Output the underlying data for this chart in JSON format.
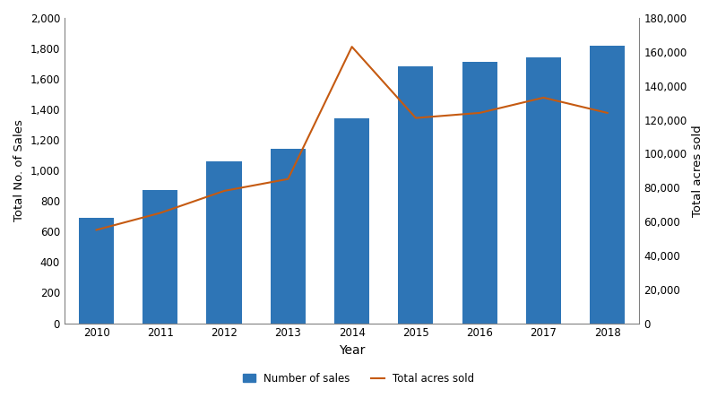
{
  "years": [
    2010,
    2011,
    2012,
    2013,
    2014,
    2015,
    2016,
    2017,
    2018
  ],
  "num_sales": [
    690,
    870,
    1060,
    1140,
    1340,
    1680,
    1710,
    1740,
    1820
  ],
  "acres_sold": [
    55000,
    65000,
    78000,
    85000,
    163000,
    121000,
    124000,
    133000,
    124000
  ],
  "bar_color": "#2e75b6",
  "line_color": "#c55a11",
  "xlabel": "Year",
  "ylabel_left": "Total No. of Sales",
  "ylabel_right": "Total acres sold",
  "ylim_left": [
    0,
    2000
  ],
  "ylim_right": [
    0,
    180000
  ],
  "yticks_left": [
    0,
    200,
    400,
    600,
    800,
    1000,
    1200,
    1400,
    1600,
    1800,
    2000
  ],
  "yticks_right": [
    0,
    20000,
    40000,
    60000,
    80000,
    100000,
    120000,
    140000,
    160000,
    180000
  ],
  "legend_labels": [
    "Number of sales",
    "Total acres sold"
  ],
  "bar_width": 0.55,
  "line_width": 1.5,
  "fig_width": 8.0,
  "fig_height": 4.44,
  "dpi": 100,
  "background_color": "#ffffff",
  "xlabel_fontsize": 10,
  "ylabel_fontsize": 9.5,
  "tick_fontsize": 8.5,
  "legend_fontsize": 8.5,
  "spine_color": "#808080"
}
